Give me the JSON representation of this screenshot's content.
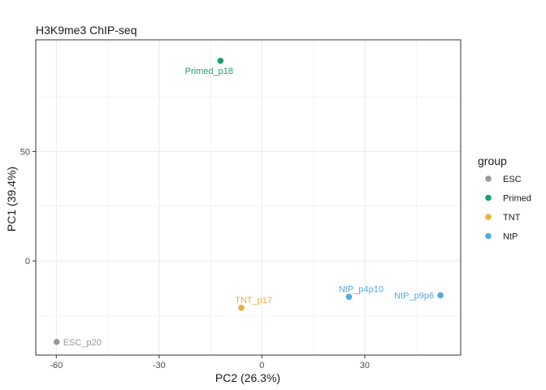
{
  "chart_data": {
    "type": "scatter",
    "title": "H3K9me3 ChIP-seq",
    "xlabel": "PC2 (26.3%)",
    "ylabel": "PC1 (39.4%)",
    "xlim": [
      -66,
      58
    ],
    "ylim": [
      -43,
      101
    ],
    "xticks": [
      -60,
      -30,
      0,
      30
    ],
    "yticks": [
      0,
      50
    ],
    "grid": true,
    "legend": {
      "title": "group",
      "position": "right",
      "entries": [
        "ESC",
        "Primed",
        "TNT",
        "NtP"
      ]
    },
    "colors": {
      "ESC": "#999999",
      "Primed": "#1b9e77",
      "TNT": "#e6b33d",
      "NtP": "#56a8e0"
    },
    "points": [
      {
        "label": "ESC_p20",
        "group": "ESC",
        "x": -59.9,
        "y": -37.0
      },
      {
        "label": "Primed_p18",
        "group": "Primed",
        "x": -12.1,
        "y": 91.4
      },
      {
        "label": "TNT_p17",
        "group": "TNT",
        "x": -6.0,
        "y": -21.4
      },
      {
        "label": "NtP_p4p10",
        "group": "NtP",
        "x": 25.4,
        "y": -16.4
      },
      {
        "label": "NtP_p9p6",
        "group": "NtP",
        "x": 52.1,
        "y": -15.7
      }
    ]
  }
}
